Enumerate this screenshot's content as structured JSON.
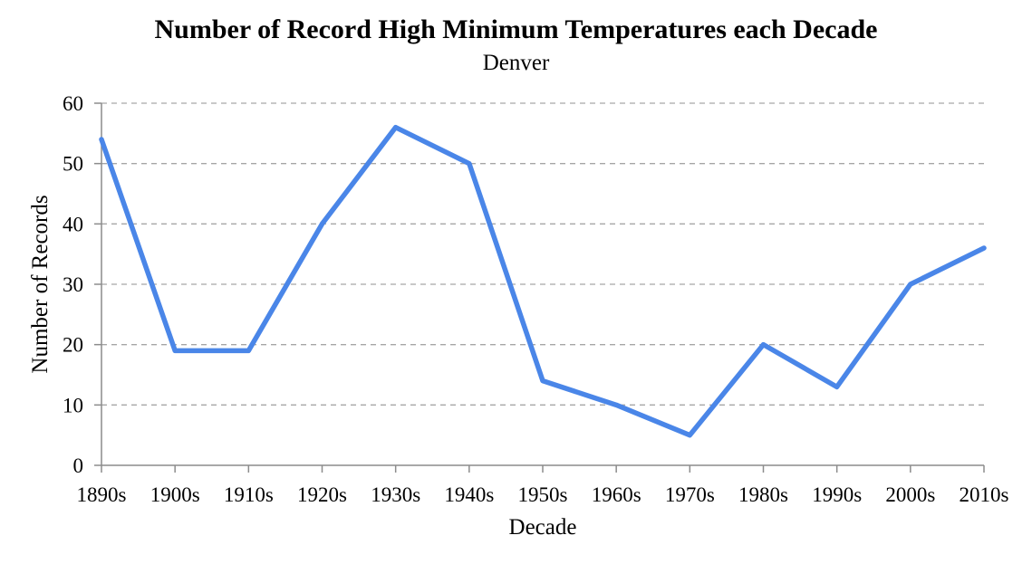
{
  "chart_data": {
    "type": "line",
    "title": "Number of Record High Minimum Temperatures each Decade",
    "subtitle": "Denver",
    "xlabel": "Decade",
    "ylabel": "Number of Records",
    "categories": [
      "1890s",
      "1900s",
      "1910s",
      "1920s",
      "1930s",
      "1940s",
      "1950s",
      "1960s",
      "1970s",
      "1980s",
      "1990s",
      "2000s",
      "2010s"
    ],
    "series": [
      {
        "values": [
          54,
          19,
          19,
          40,
          56,
          50,
          14,
          10,
          5,
          20,
          13,
          30,
          36
        ],
        "color": "#4a86e8"
      }
    ],
    "ylim": [
      0,
      60
    ],
    "yticks": [
      0,
      10,
      20,
      30,
      40,
      50,
      60
    ],
    "grid": true,
    "legend": "none"
  }
}
